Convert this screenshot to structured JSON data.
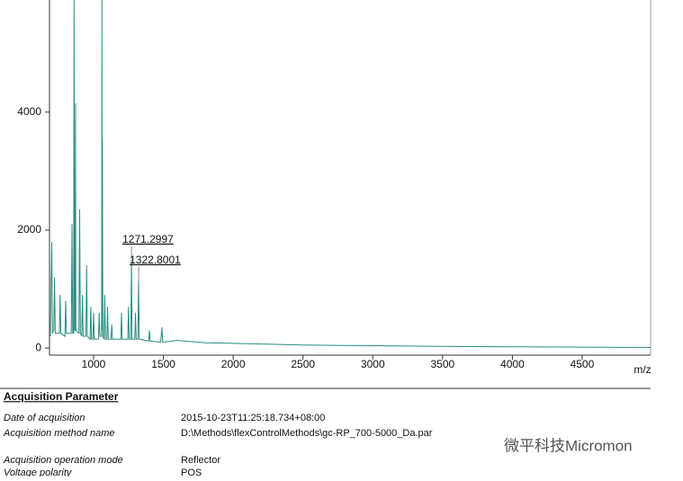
{
  "chart_data": {
    "type": "line",
    "x_label": "m/z",
    "xlim": [
      684,
      4990
    ],
    "ylim": [
      -120,
      5900
    ],
    "xticks": [
      1000,
      1500,
      2000,
      2500,
      3000,
      3500,
      4000,
      4500
    ],
    "yticks": [
      0,
      2000,
      4000
    ],
    "series": [
      {
        "color": "#2a8c80",
        "x": [
          684,
          690,
          700,
          705,
          715,
          720,
          725,
          755,
          760,
          765,
          795,
          800,
          805,
          840,
          845,
          850,
          857,
          860,
          864,
          868,
          870,
          873,
          895,
          900,
          905,
          915,
          920,
          925,
          945,
          950,
          955,
          975,
          980,
          985,
          995,
          1000,
          1005,
          1035,
          1040,
          1045,
          1057,
          1060,
          1062,
          1063,
          1066,
          1075,
          1080,
          1085,
          1095,
          1100,
          1105,
          1125,
          1130,
          1135,
          1195,
          1200,
          1205,
          1245,
          1250,
          1255,
          1266,
          1271,
          1276,
          1295,
          1300,
          1305,
          1317,
          1322,
          1327,
          1395,
          1400,
          1405,
          1480,
          1490,
          1495,
          1600,
          1800,
          2000,
          2500,
          3000,
          3500,
          4000,
          4500,
          5000
        ],
        "values": [
          300,
          200,
          1800,
          250,
          300,
          1200,
          250,
          250,
          900,
          250,
          200,
          800,
          250,
          250,
          2100,
          250,
          250,
          5900,
          300,
          300,
          4150,
          300,
          250,
          2350,
          250,
          200,
          900,
          200,
          200,
          1400,
          200,
          150,
          700,
          150,
          150,
          600,
          150,
          150,
          600,
          200,
          200,
          5900,
          300,
          3550,
          200,
          150,
          900,
          150,
          150,
          700,
          150,
          150,
          400,
          150,
          150,
          600,
          150,
          150,
          700,
          150,
          150,
          1500,
          150,
          150,
          600,
          150,
          150,
          1150,
          150,
          120,
          300,
          120,
          100,
          350,
          100,
          130,
          90,
          80,
          50,
          40,
          30,
          20,
          15,
          10
        ]
      }
    ],
    "annotations": [
      {
        "text": "1271.2997",
        "x": 1271.2997,
        "y": 1500
      },
      {
        "text": "1322.8001",
        "x": 1322.8001,
        "y": 1150
      }
    ]
  },
  "parameters": {
    "title": "Acquisition Parameter",
    "rows": [
      [
        "Date of acquisition",
        "2015-10-23T11:25:18.734+08:00"
      ],
      [
        "Acquisition method name",
        "D:\\Methods\\flexControlMethods\\gc-RP_700-5000_Da.par"
      ],
      [
        "Acquisition operation mode",
        "Reflector"
      ],
      [
        "Voltage polarity",
        "POS"
      ]
    ]
  },
  "watermark": "微平科技Micromon"
}
